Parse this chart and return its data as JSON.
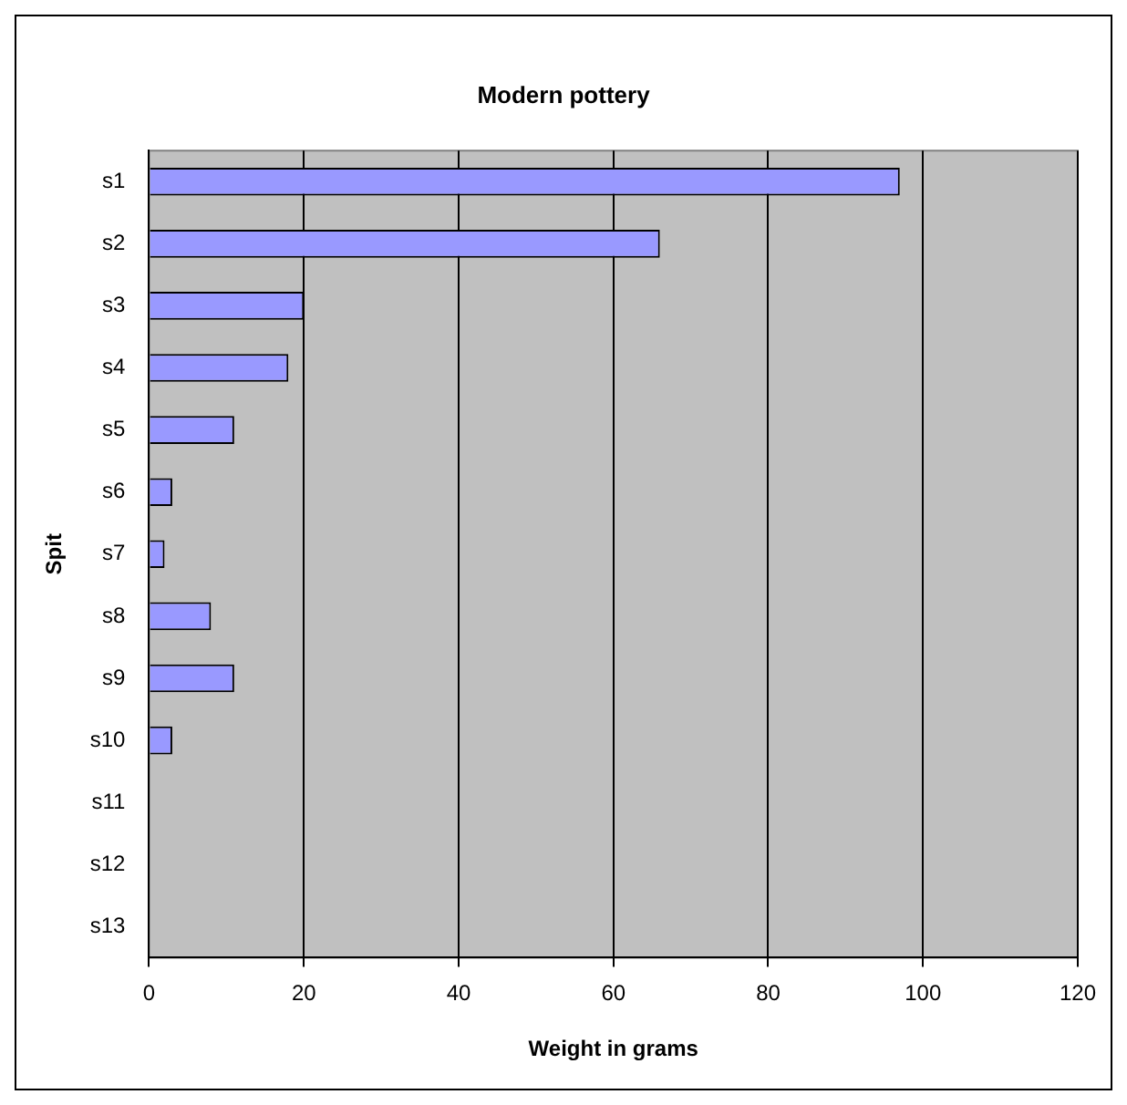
{
  "chart_data": {
    "type": "bar",
    "orientation": "horizontal",
    "title": "Modern pottery",
    "xlabel": "Weight in grams",
    "ylabel": "Spit",
    "categories": [
      "s1",
      "s2",
      "s3",
      "s4",
      "s5",
      "s6",
      "s7",
      "s8",
      "s9",
      "s10",
      "s11",
      "s12",
      "s13"
    ],
    "values": [
      97,
      66,
      20,
      18,
      11,
      3,
      2,
      8,
      11,
      3,
      0,
      0,
      0
    ],
    "color": "#9999ff",
    "xlim": [
      0,
      120
    ],
    "xticks": [
      0,
      20,
      40,
      60,
      80,
      100,
      120
    ],
    "grid": "x",
    "legend": false
  }
}
